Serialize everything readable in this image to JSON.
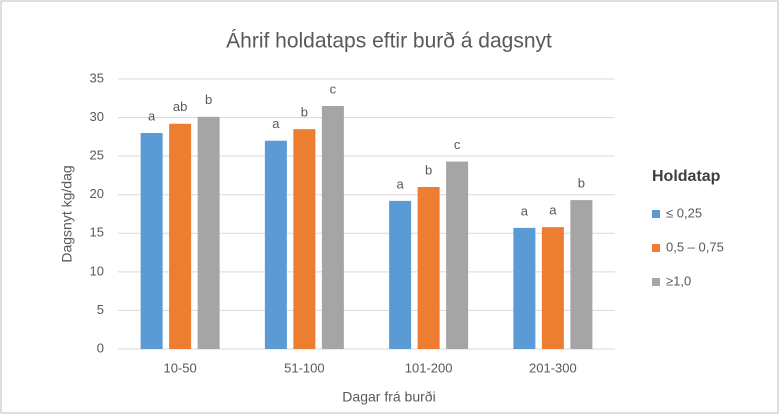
{
  "chart_data": {
    "type": "bar",
    "title": "Áhrif holdataps eftir burð á dagsnyt",
    "x_label": "Dagar frá burði",
    "y_label": "Dagsnyt kg/dag",
    "legend_title": "Holdatap",
    "legend_position": "right",
    "categories": [
      "10-50",
      "51-100",
      "101-200",
      "201-300"
    ],
    "series": [
      {
        "name": "≤ 0,25",
        "color": "#5b9bd5",
        "values": [
          28,
          27,
          19.2,
          15.7
        ],
        "annotations": [
          "a",
          "a",
          "a",
          "a"
        ]
      },
      {
        "name": "0,5 – 0,75",
        "color": "#ed7d31",
        "values": [
          29.2,
          28.5,
          21,
          15.8
        ],
        "annotations": [
          "ab",
          "b",
          "b",
          "a"
        ]
      },
      {
        "name": "≥1,0",
        "color": "#a5a5a5",
        "values": [
          30.1,
          31.5,
          24.3,
          19.3
        ],
        "annotations": [
          "b",
          "c",
          "c",
          "b"
        ]
      }
    ],
    "ylim": [
      0,
      35
    ],
    "yticks": [
      0,
      5,
      10,
      15,
      20,
      25,
      30,
      35
    ],
    "grid": true
  }
}
